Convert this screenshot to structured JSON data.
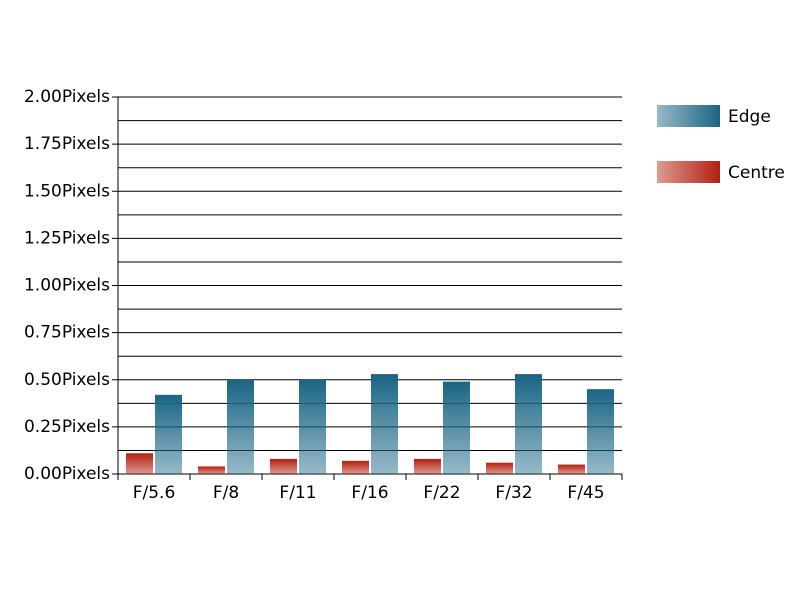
{
  "chart_data": {
    "type": "bar",
    "categories": [
      "F/5.6",
      "F/8",
      "F/11",
      "F/16",
      "F/22",
      "F/32",
      "F/45"
    ],
    "series": [
      {
        "name": "Edge",
        "color": "#1a6584",
        "values": [
          0.42,
          0.5,
          0.5,
          0.53,
          0.49,
          0.53,
          0.45
        ]
      },
      {
        "name": "Centre",
        "color": "#b3200f",
        "values": [
          0.11,
          0.04,
          0.08,
          0.07,
          0.08,
          0.06,
          0.05
        ]
      }
    ],
    "ylim": [
      0,
      2
    ],
    "yticks": [
      {
        "value": 0,
        "label": "0.00Pixels"
      },
      {
        "value": 0.25,
        "label": "0.25Pixels"
      },
      {
        "value": 0.5,
        "label": "0.50Pixels"
      },
      {
        "value": 0.75,
        "label": "0.75Pixels"
      },
      {
        "value": 1,
        "label": "1.00Pixels"
      },
      {
        "value": 1.25,
        "label": "1.25Pixels"
      },
      {
        "value": 1.5,
        "label": "1.50Pixels"
      },
      {
        "value": 1.75,
        "label": "1.75Pixels"
      },
      {
        "value": 2,
        "label": "2.00Pixels"
      }
    ],
    "minor_yticks": [
      0.125,
      0.375,
      0.625,
      0.875,
      1.125,
      1.375,
      1.625,
      1.875
    ],
    "grid": true,
    "legend": "right"
  }
}
